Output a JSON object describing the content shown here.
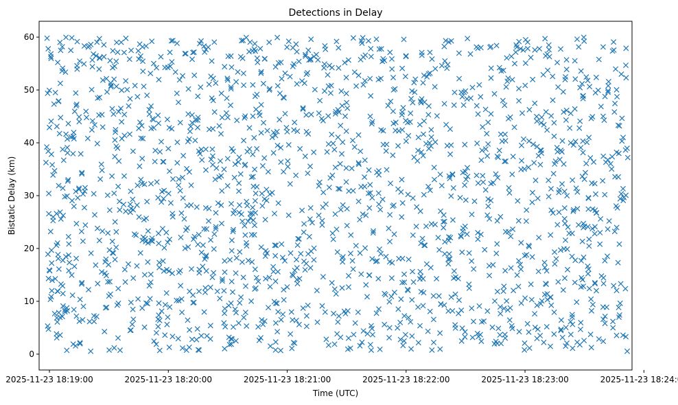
{
  "chart_data": {
    "type": "scatter",
    "title": "Detections in Delay",
    "xlabel": "Time (UTC)",
    "ylabel": "Bistatic Delay (km)",
    "marker": "x",
    "color": "#1f77b4",
    "xlim_minutes": [
      18.9133,
      23.9
    ],
    "ylim": [
      -3,
      63
    ],
    "x_tick_labels": [
      "2025-11-23 18:19:00",
      "2025-11-23 18:20:00",
      "2025-11-23 18:21:00",
      "2025-11-23 18:22:00",
      "2025-11-23 18:23:00",
      "2025-11-23 18:24:00"
    ],
    "x_tick_values_minutes": [
      19,
      20,
      21,
      22,
      23,
      24
    ],
    "y_tick_labels": [
      "0",
      "10",
      "20",
      "30",
      "40",
      "50",
      "60"
    ],
    "y_tick_values": [
      0,
      10,
      20,
      30,
      40,
      50,
      60
    ],
    "x_range_minutes": [
      18.97,
      23.87
    ],
    "y_range": [
      0.5,
      60
    ],
    "point_count_estimate": 1800,
    "sample_points": [
      [
        18.98,
        59.8
      ],
      [
        18.99,
        57.8
      ],
      [
        18.99,
        38.4
      ],
      [
        19.0,
        42.9
      ],
      [
        19.01,
        23.2
      ],
      [
        19.02,
        12.0
      ],
      [
        19.03,
        33.9
      ],
      [
        19.05,
        49.5
      ],
      [
        19.06,
        26.6
      ],
      [
        19.07,
        55.2
      ],
      [
        19.08,
        16.1
      ],
      [
        19.09,
        3.6
      ],
      [
        19.12,
        36.7
      ],
      [
        19.15,
        8.2
      ],
      [
        19.18,
        57.5
      ],
      [
        19.2,
        1.9
      ],
      [
        19.25,
        44.9
      ],
      [
        19.3,
        31.5
      ],
      [
        19.35,
        19.1
      ],
      [
        19.42,
        59.7
      ],
      [
        19.5,
        11.0
      ],
      [
        19.6,
        46.5
      ],
      [
        19.7,
        29.3
      ],
      [
        19.8,
        5.1
      ],
      [
        19.9,
        54.2
      ],
      [
        20.0,
        38.9
      ],
      [
        20.1,
        15.8
      ],
      [
        20.2,
        2.8
      ],
      [
        20.3,
        58.3
      ],
      [
        20.4,
        24.1
      ],
      [
        20.5,
        44.8
      ],
      [
        20.6,
        9.7
      ],
      [
        20.7,
        33.5
      ],
      [
        20.8,
        51.2
      ],
      [
        20.9,
        18.6
      ],
      [
        21.0,
        42.1
      ],
      [
        21.1,
        5.6
      ],
      [
        21.2,
        59.6
      ],
      [
        21.3,
        27.8
      ],
      [
        21.4,
        12.3
      ],
      [
        21.5,
        47.6
      ],
      [
        21.6,
        36.2
      ],
      [
        21.7,
        1.8
      ],
      [
        21.8,
        55.4
      ],
      [
        21.9,
        22.7
      ],
      [
        22.0,
        40.3
      ],
      [
        22.1,
        8.9
      ],
      [
        22.2,
        57.1
      ],
      [
        22.3,
        31.9
      ],
      [
        22.4,
        14.4
      ],
      [
        22.5,
        49.8
      ],
      [
        22.6,
        3.9
      ],
      [
        22.7,
        25.6
      ],
      [
        22.8,
        53.6
      ],
      [
        22.9,
        37.4
      ],
      [
        23.0,
        10.6
      ],
      [
        23.1,
        44.1
      ],
      [
        23.2,
        58.5
      ],
      [
        23.3,
        19.7
      ],
      [
        23.4,
        1.1
      ],
      [
        23.5,
        33.1
      ],
      [
        23.6,
        12.0
      ],
      [
        23.7,
        50.8
      ],
      [
        23.8,
        29.4
      ],
      [
        23.85,
        57.9
      ]
    ]
  }
}
